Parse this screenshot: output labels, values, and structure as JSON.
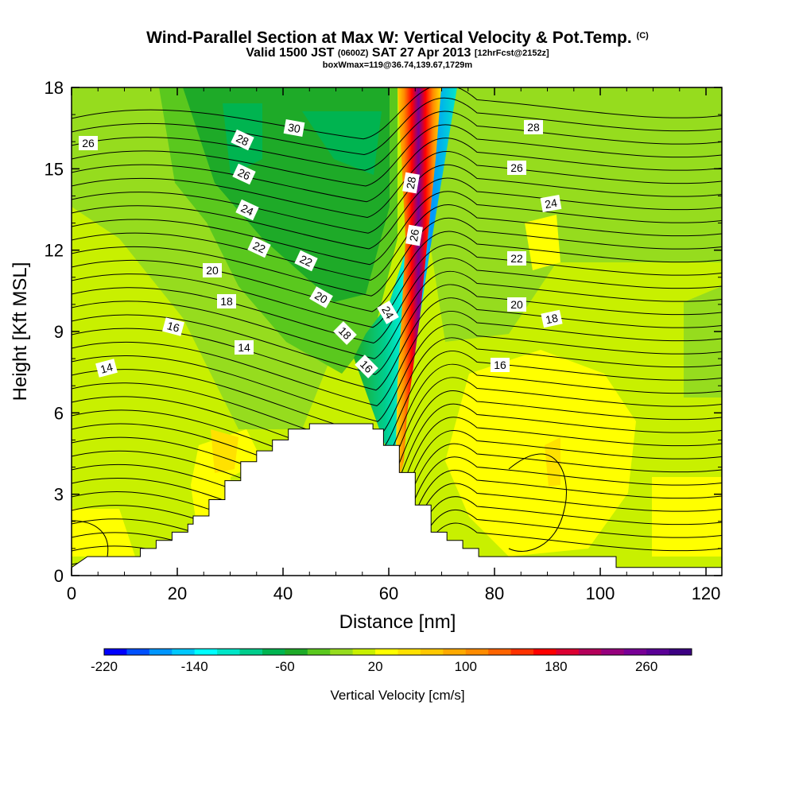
{
  "header": {
    "title": "Wind-Parallel Section at Max W: Vertical Velocity & Pot.Temp.",
    "title_tag": "(C)",
    "valid_prefix": "Valid 1500 JST",
    "valid_utc": "(0600Z)",
    "valid_date": "SAT 27 Apr 2013",
    "forecast": "[12hrFcst@2152z]",
    "box_info": "boxWmax=119@36.74,139.67,1729m"
  },
  "chart_data": {
    "type": "heatmap",
    "xlabel": "Distance [nm]",
    "ylabel": "Height [Kft MSL]",
    "xlim": [
      0,
      123
    ],
    "ylim": [
      0,
      18
    ],
    "x_ticks": [
      "0",
      "20",
      "40",
      "60",
      "80",
      "100",
      "120"
    ],
    "y_ticks": [
      "0",
      "3",
      "6",
      "9",
      "12",
      "15",
      "18"
    ],
    "colorbar": {
      "label": "Vertical Velocity [cm/s]",
      "range": [
        -220,
        300
      ],
      "step": 20,
      "tick_labels": [
        "-220",
        "-140",
        "-60",
        "20",
        "100",
        "180",
        "260"
      ],
      "colors": [
        "#0000ff",
        "#0050ff",
        "#0096ff",
        "#00c8ff",
        "#00ffff",
        "#00e6c8",
        "#00cd8c",
        "#00b450",
        "#1eaa28",
        "#5ac81e",
        "#96dc1e",
        "#c8f000",
        "#ffff00",
        "#ffe100",
        "#ffc800",
        "#ffaa00",
        "#ff8c00",
        "#ff6400",
        "#ff3200",
        "#ff0000",
        "#dc0032",
        "#b4005a",
        "#96007d",
        "#780096",
        "#5a0096",
        "#3c0082"
      ]
    },
    "isentrope_labels": [
      "14",
      "16",
      "18",
      "20",
      "22",
      "24",
      "26",
      "28",
      "30"
    ],
    "terrain_profile_kft": [
      [
        0,
        0.3
      ],
      [
        3,
        0.7
      ],
      [
        13,
        0.7
      ],
      [
        13,
        1.0
      ],
      [
        16,
        1.0
      ],
      [
        16,
        1.3
      ],
      [
        19,
        1.3
      ],
      [
        19,
        1.6
      ],
      [
        22,
        1.6
      ],
      [
        22,
        1.9
      ],
      [
        23,
        1.9
      ],
      [
        23,
        2.2
      ],
      [
        26,
        2.2
      ],
      [
        26,
        2.8
      ],
      [
        29,
        2.8
      ],
      [
        29,
        3.5
      ],
      [
        32,
        3.5
      ],
      [
        32,
        4.2
      ],
      [
        35,
        4.2
      ],
      [
        35,
        4.6
      ],
      [
        38,
        4.6
      ],
      [
        38,
        5.0
      ],
      [
        41,
        5.0
      ],
      [
        41,
        5.4
      ],
      [
        45,
        5.4
      ],
      [
        45,
        5.6
      ],
      [
        57,
        5.6
      ],
      [
        57,
        5.4
      ],
      [
        59,
        5.4
      ],
      [
        59,
        4.8
      ],
      [
        62,
        4.8
      ],
      [
        62,
        3.8
      ],
      [
        65,
        3.8
      ],
      [
        65,
        2.6
      ],
      [
        68,
        2.6
      ],
      [
        68,
        1.6
      ],
      [
        71,
        1.6
      ],
      [
        71,
        1.3
      ],
      [
        74,
        1.3
      ],
      [
        74,
        1.0
      ],
      [
        77,
        1.0
      ],
      [
        77,
        0.7
      ],
      [
        103,
        0.7
      ],
      [
        103,
        0.3
      ],
      [
        123,
        0.3
      ]
    ],
    "w_max_cm_s": 119,
    "updraft_core_x_nm": 65,
    "downdraft_core_x_nm": 61
  }
}
